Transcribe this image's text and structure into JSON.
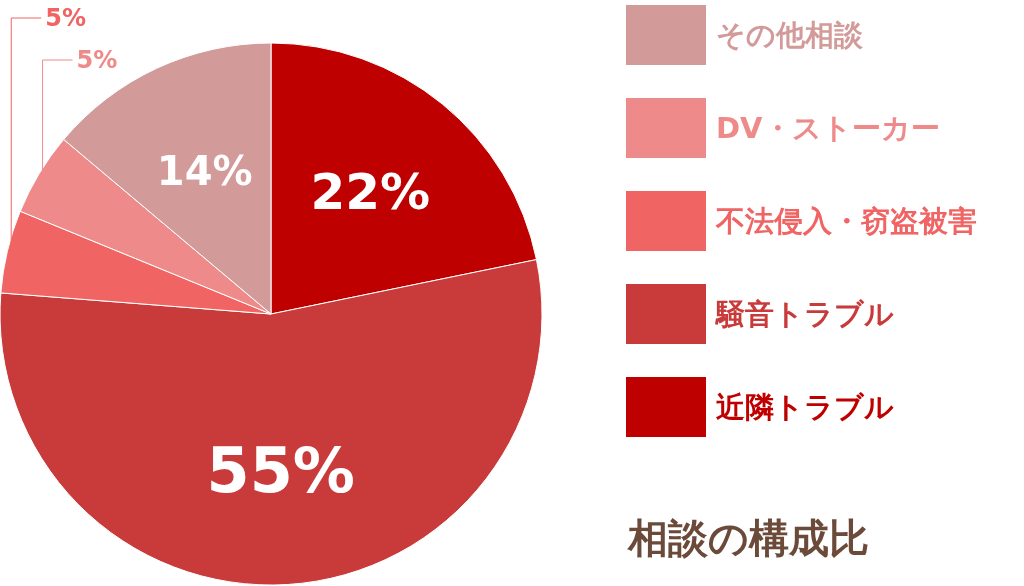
{
  "chart_data": {
    "type": "pie",
    "title": "相談の構成比",
    "categories": [
      "近隣トラブル",
      "騒音トラブル",
      "不法侵入・窃盗被害",
      "DV・ストーカー",
      "その他相談"
    ],
    "values": [
      22,
      55,
      5,
      5,
      14
    ],
    "value_labels": [
      "22%",
      "55%",
      "5%",
      "5%",
      "14%"
    ],
    "colors": [
      "#bf0000",
      "#c93a3a",
      "#f06464",
      "#ef8a8a",
      "#d39a9a"
    ],
    "legend": "right"
  }
}
